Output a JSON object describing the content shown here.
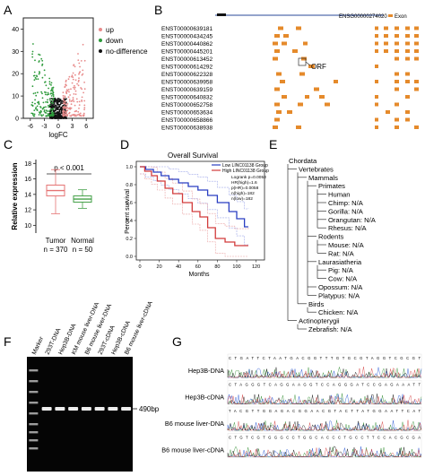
{
  "panels": {
    "A": {
      "label": "A",
      "legend": [
        "up",
        "down",
        "no-difference"
      ],
      "colors": {
        "up": "#e88a8a",
        "down": "#2c9a3a",
        "none": "#111111"
      },
      "xlabel": "logFC",
      "xticks": [
        "-6",
        "-3",
        "0",
        "3",
        "6"
      ],
      "yticks": [
        "0",
        "10",
        "20",
        "30",
        "40"
      ]
    },
    "B": {
      "label": "B",
      "gene": "ENSG00000274020",
      "exon_label": "Exon",
      "orf_label": "ORF",
      "transcripts": [
        "ENST00000639181",
        "ENST00000434245",
        "ENST00000440862",
        "ENST00000445201",
        "ENST00000613452",
        "ENST00000614292",
        "ENST00000622328",
        "ENST00000639958",
        "ENST00000639159",
        "ENST00000640832",
        "ENST00000652758",
        "ENST00000653634",
        "ENST00000658866",
        "ENST00000638938"
      ]
    },
    "C": {
      "label": "C",
      "ylabel": "Relative expression",
      "pvalue": "p < 0.001",
      "yticks": [
        "10",
        "12",
        "14",
        "16",
        "18"
      ],
      "groups": [
        {
          "name": "Tumor",
          "n": "n = 370",
          "color": "#e57373",
          "q1": 13.8,
          "median": 14.5,
          "q3": 15.2,
          "min": 11.5,
          "max": 17.2
        },
        {
          "name": "Normal",
          "n": "n = 50",
          "color": "#43a047",
          "q1": 13.0,
          "median": 13.4,
          "q3": 13.8,
          "min": 12.2,
          "max": 14.6
        }
      ]
    },
    "D": {
      "label": "D",
      "title": "Overall Survival",
      "ylabel": "Percent survival",
      "xlabel": "Months",
      "legend": [
        "Low LINC01138 Group",
        "High LINC01138 Group"
      ],
      "stats": [
        "Logrank p=0.0053",
        "HR(high)=1.6",
        "p(HR)=0.0058",
        "n(high)=182",
        "n(low)=182"
      ],
      "xticks": [
        "0",
        "20",
        "40",
        "60",
        "80",
        "100",
        "120"
      ],
      "yticks": [
        "0.0",
        "0.2",
        "0.4",
        "0.6",
        "0.8",
        "1.0"
      ]
    },
    "E": {
      "label": "E",
      "tree": [
        {
          "d": 0,
          "t": "Chordata"
        },
        {
          "d": 1,
          "t": "Vertebrates"
        },
        {
          "d": 2,
          "t": "Mammals"
        },
        {
          "d": 3,
          "t": "Primates"
        },
        {
          "d": 4,
          "t": "Human"
        },
        {
          "d": 4,
          "t": "Chimp: N/A"
        },
        {
          "d": 4,
          "t": "Gorilla: N/A"
        },
        {
          "d": 4,
          "t": "Orangutan: N/A"
        },
        {
          "d": 4,
          "t": "Rhesus: N/A"
        },
        {
          "d": 3,
          "t": "Rodents"
        },
        {
          "d": 4,
          "t": "Mouse: N/A"
        },
        {
          "d": 4,
          "t": "Rat: N/A"
        },
        {
          "d": 3,
          "t": "Laurasiatheria"
        },
        {
          "d": 4,
          "t": "Pig: N/A"
        },
        {
          "d": 4,
          "t": "Cow: N/A"
        },
        {
          "d": 3,
          "t": "Opossum: N/A"
        },
        {
          "d": 3,
          "t": "Platypus: N/A"
        },
        {
          "d": 2,
          "t": "Birds"
        },
        {
          "d": 3,
          "t": "Chicken: N/A"
        },
        {
          "d": 1,
          "t": "Actinopterygii"
        },
        {
          "d": 2,
          "t": "Zebrafish: N/A"
        }
      ]
    },
    "F": {
      "label": "F",
      "lanes": [
        "Marker",
        "293T-DNA",
        "Hep3B-DNA",
        "KM mouse liver-DNA",
        "B6 mouse liver-DNA",
        "293T-cDNA",
        "Hep3B-cDNA",
        "B6 mouse liver-cDNA"
      ],
      "band_label": "490bp"
    },
    "G": {
      "label": "G",
      "rows": [
        "Hep3B-DNA",
        "Hep3B-cDNA",
        "B6 mouse liver-DNA",
        "B6 mouse liver-cDNA"
      ]
    }
  }
}
